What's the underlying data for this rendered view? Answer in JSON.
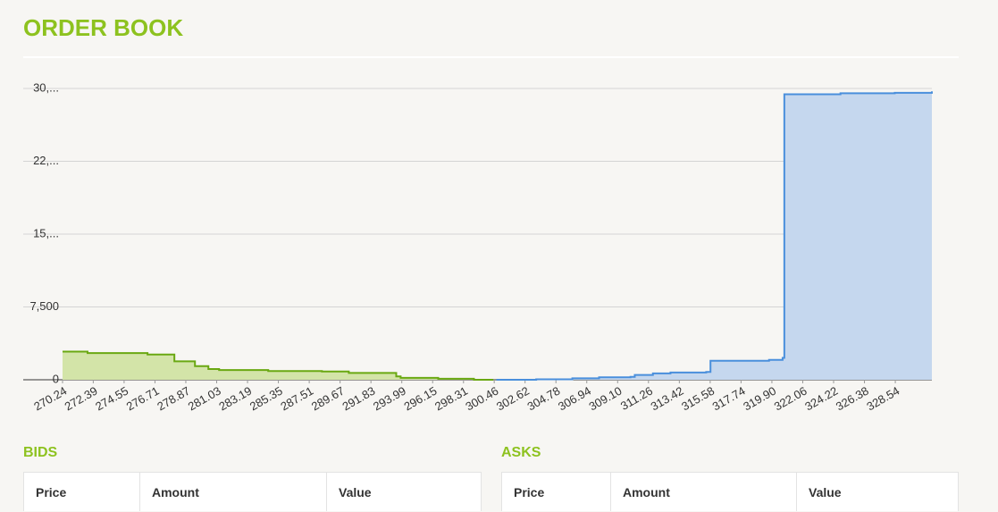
{
  "header": {
    "title": "ORDER BOOK"
  },
  "chart_data": {
    "type": "depth",
    "xlim": [
      270.24,
      331.1
    ],
    "ylim": [
      0,
      30000
    ],
    "grid": true,
    "xticks": [
      270.24,
      272.39,
      274.55,
      276.71,
      278.87,
      281.03,
      283.19,
      285.35,
      287.51,
      289.67,
      291.83,
      293.99,
      296.15,
      298.31,
      300.46,
      302.62,
      304.78,
      306.94,
      {
        "value": 309.1,
        "label": "309.10"
      },
      311.26,
      313.42,
      315.58,
      317.74,
      {
        "value": 319.9,
        "label": "319.90"
      },
      322.06,
      324.22,
      326.38,
      328.54
    ],
    "yticks": [
      0,
      {
        "value": 7500,
        "label": "7,500"
      },
      {
        "value": 15000,
        "label": "15,..."
      },
      {
        "value": 22500,
        "label": "22,..."
      },
      {
        "value": 30000,
        "label": "30,..."
      }
    ],
    "series": [
      {
        "color": "#6aa812",
        "fill": "#d3e4a8",
        "x": [
          270.24,
          271.99,
          276.19,
          278.07,
          279.51,
          280.45,
          281.2,
          284.64,
          288.4,
          290.28,
          293.6,
          293.91,
          296.54,
          299.04,
          300.4
        ],
        "values": [
          2900,
          2750,
          2600,
          1900,
          1400,
          1100,
          1000,
          900,
          850,
          700,
          350,
          200,
          100,
          0,
          0
        ]
      },
      {
        "color": "#4a8fdc",
        "fill": "#c5d7ee",
        "x": [
          300.61,
          303.4,
          305.93,
          307.8,
          310.0,
          310.3,
          311.57,
          312.8,
          315.3,
          315.6,
          319.7,
          320.65,
          320.77,
          324.7,
          328.5,
          331.1
        ],
        "values": [
          0,
          50,
          150,
          250,
          300,
          500,
          650,
          750,
          800,
          1950,
          2050,
          2250,
          29400,
          29500,
          29550,
          29700
        ]
      }
    ]
  },
  "bids": {
    "title": "BIDS",
    "columns": [
      "Price",
      "Amount",
      "Value"
    ]
  },
  "asks": {
    "title": "ASKS",
    "columns": [
      "Price",
      "Amount",
      "Value"
    ]
  }
}
